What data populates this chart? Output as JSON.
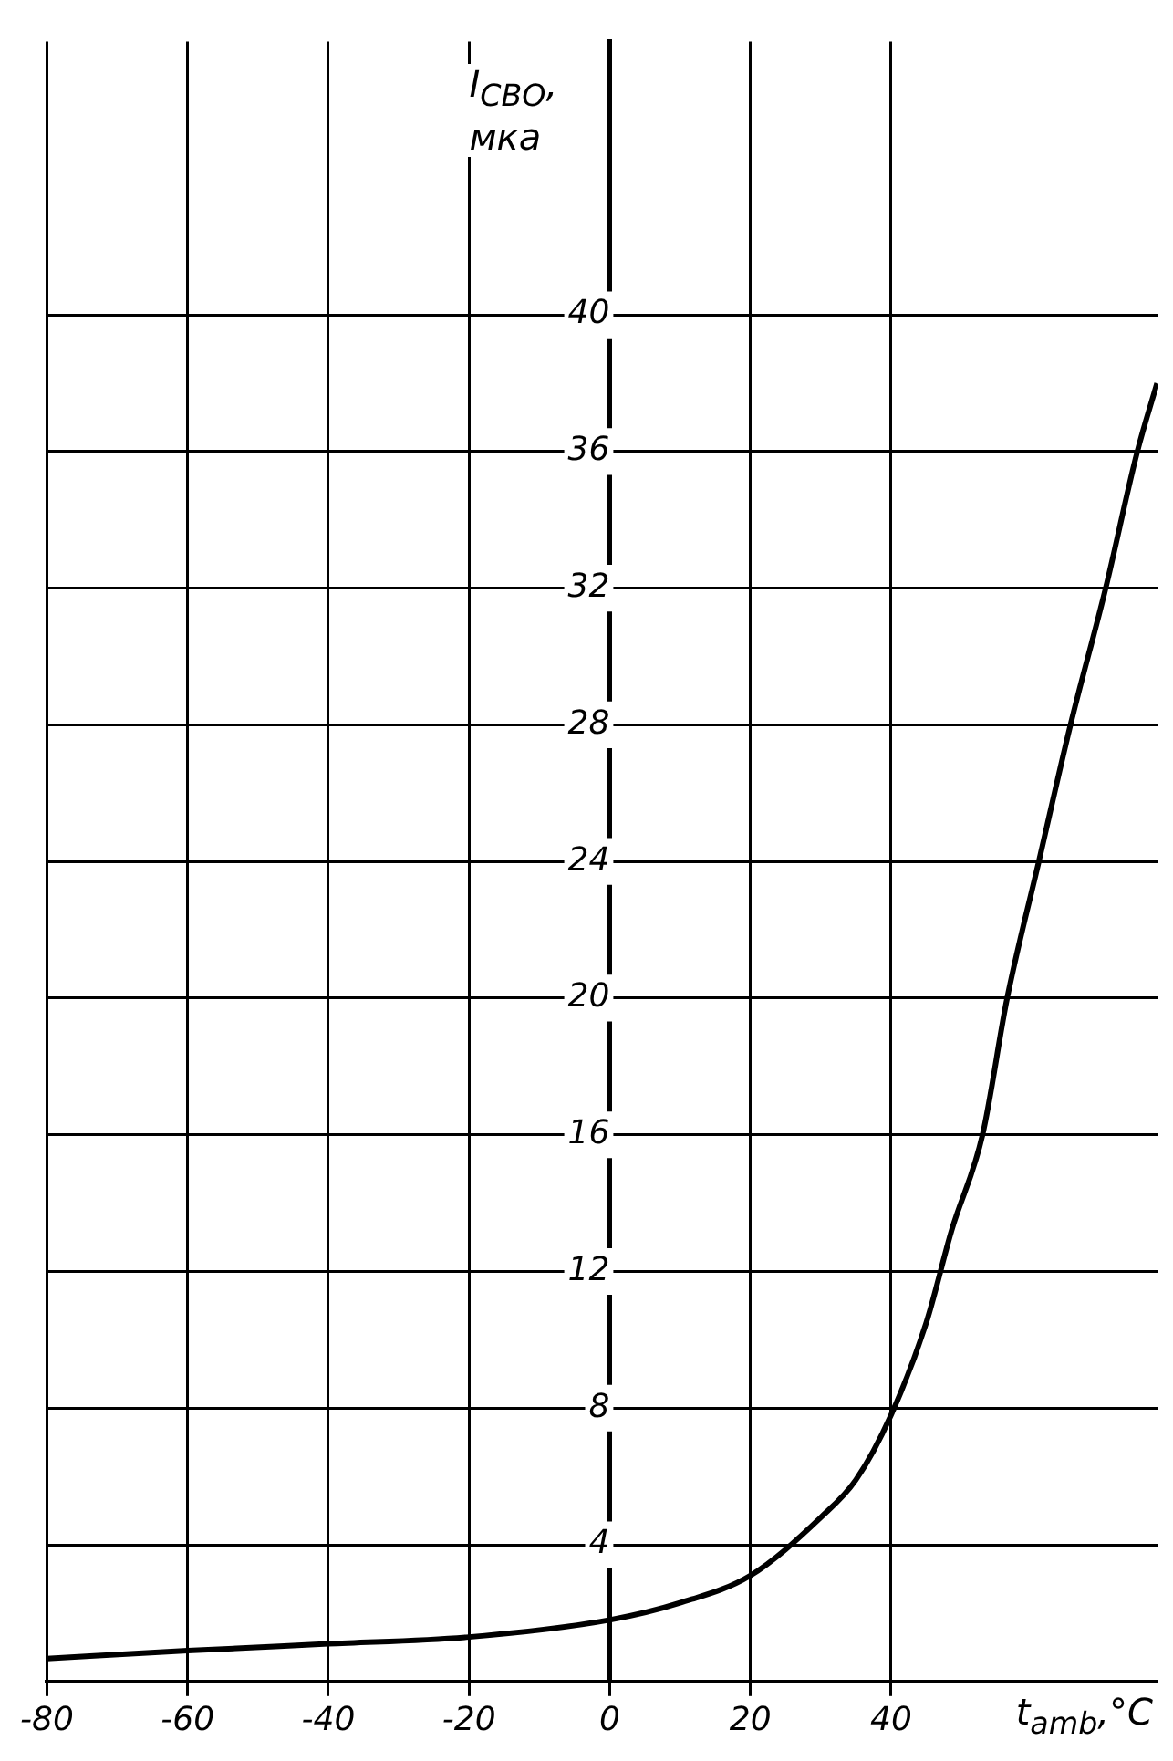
{
  "chart_data": {
    "type": "line",
    "xlabel": "t$_{amb}$,°C",
    "ylabel": "I$_{CBO}$, мка",
    "x": [
      -80,
      -60,
      -40,
      -20,
      0,
      10,
      20,
      30,
      35,
      40,
      45,
      48.6,
      53,
      56.5,
      61,
      65.5,
      70.5,
      75,
      77.8
    ],
    "series": [
      {
        "color": "#000000",
        "values": [
          0.67,
          0.9,
          1.1,
          1.3,
          1.8,
          2.3,
          3.1,
          4.8,
          5.9,
          7.8,
          10.5,
          13.2,
          16,
          20,
          24,
          28,
          32,
          36,
          38
        ]
      }
    ],
    "xlim": [
      -80,
      78
    ],
    "xticks": [
      -80,
      -60,
      -40,
      -20,
      0,
      20,
      40
    ],
    "ylim": [
      0,
      48
    ],
    "yticks": [
      4,
      8,
      12,
      16,
      20,
      24,
      28,
      32,
      36,
      40
    ],
    "grid": true,
    "marker": "none",
    "line_style": "solid"
  }
}
